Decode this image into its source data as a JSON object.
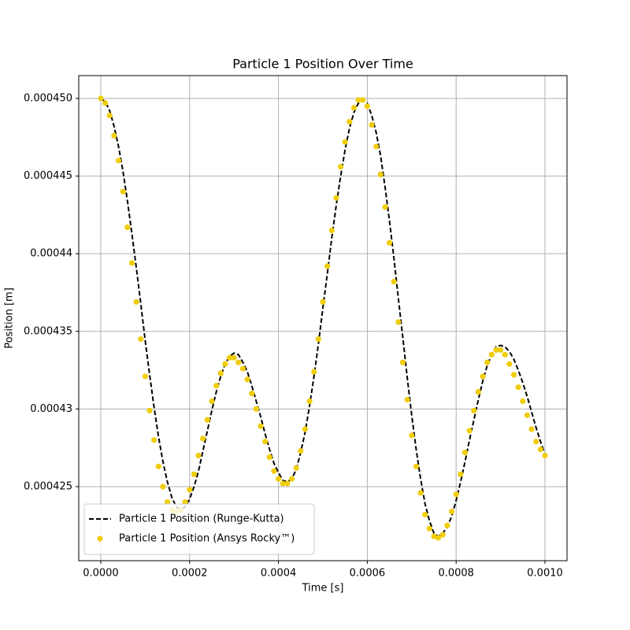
{
  "chart_data": {
    "type": "line",
    "title": "Particle 1 Position Over Time",
    "x_label": "Time [s]",
    "y_label": "Position [m]",
    "x": [
      0,
      1e-05,
      2e-05,
      3e-05,
      4e-05,
      5e-05,
      6e-05,
      7e-05,
      8e-05,
      9e-05,
      0.0001,
      0.00011,
      0.00012,
      0.00013,
      0.00014,
      0.00015,
      0.00016,
      0.00017,
      0.00018,
      0.00019,
      0.0002,
      0.00021,
      0.00022,
      0.00023,
      0.00024,
      0.00025,
      0.00026,
      0.00027,
      0.00028,
      0.00029,
      0.0003,
      0.00031,
      0.00032,
      0.00033,
      0.00034,
      0.00035,
      0.00036,
      0.00037,
      0.00038,
      0.00039,
      0.0004,
      0.00041,
      0.00042,
      0.00043,
      0.00044,
      0.00045,
      0.00046,
      0.00047,
      0.00048,
      0.00049,
      0.0005,
      0.00051,
      0.00052,
      0.00053,
      0.00054,
      0.00055,
      0.00056,
      0.00057,
      0.00058,
      0.00059,
      0.0006,
      0.00061,
      0.00062,
      0.00063,
      0.00064,
      0.00065,
      0.00066,
      0.00067,
      0.00068,
      0.00069,
      0.0007,
      0.00071,
      0.00072,
      0.00073,
      0.00074,
      0.00075,
      0.00076,
      0.00077,
      0.00078,
      0.00079,
      0.0008,
      0.00081,
      0.00082,
      0.00083,
      0.00084,
      0.00085,
      0.00086,
      0.00087,
      0.00088,
      0.00089,
      0.0009,
      0.00091,
      0.00092,
      0.00093,
      0.00094,
      0.00095,
      0.00096,
      0.00097,
      0.00098,
      0.00099,
      0.001
    ],
    "series": [
      {
        "name": "Particle 1 Position (Runge-Kutta)",
        "type": "line",
        "linestyle": "dashed",
        "color": "#000000",
        "values": [
          0.00045,
          0.0004498,
          0.0004492,
          0.0004482,
          0.0004469,
          0.0004453,
          0.0004434,
          0.0004413,
          0.0004391,
          0.0004368,
          0.0004344,
          0.0004322,
          0.0004301,
          0.0004282,
          0.0004266,
          0.0004253,
          0.0004243,
          0.0004237,
          0.0004235,
          0.0004237,
          0.0004242,
          0.000425,
          0.000426,
          0.0004273,
          0.0004286,
          0.0004299,
          0.0004311,
          0.0004321,
          0.0004329,
          0.0004334,
          0.0004336,
          0.0004335,
          0.000433,
          0.0004324,
          0.0004315,
          0.0004305,
          0.0004295,
          0.0004284,
          0.0004274,
          0.0004265,
          0.0004259,
          0.0004254,
          0.0004253,
          0.0004255,
          0.0004261,
          0.0004272,
          0.0004285,
          0.0004302,
          0.0004321,
          0.0004342,
          0.0004365,
          0.0004387,
          0.000441,
          0.0004431,
          0.000445,
          0.0004467,
          0.0004481,
          0.0004491,
          0.0004497,
          0.0004499,
          0.0004497,
          0.0004489,
          0.0004478,
          0.0004463,
          0.0004443,
          0.0004421,
          0.0004397,
          0.0004371,
          0.0004346,
          0.000432,
          0.0004296,
          0.0004274,
          0.0004255,
          0.0004239,
          0.0004228,
          0.000422,
          0.0004218,
          0.000422,
          0.0004224,
          0.0004231,
          0.0004241,
          0.0004253,
          0.0004266,
          0.000428,
          0.0004293,
          0.0004306,
          0.0004318,
          0.0004328,
          0.0004335,
          0.000434,
          0.0004341,
          0.000434,
          0.0004337,
          0.0004332,
          0.0004325,
          0.0004317,
          0.0004308,
          0.0004298,
          0.0004288,
          0.0004279,
          0.0004271
        ]
      },
      {
        "name": "Particle 1 Position (Ansys Rocky™)",
        "type": "scatter",
        "color": "#f0cd0a",
        "values": [
          0.00045,
          0.0004497,
          0.0004489,
          0.0004476,
          0.000446,
          0.000444,
          0.0004417,
          0.0004394,
          0.0004369,
          0.0004345,
          0.0004321,
          0.0004299,
          0.000428,
          0.0004263,
          0.000425,
          0.000424,
          0.0004235,
          0.0004234,
          0.0004235,
          0.000424,
          0.0004248,
          0.0004258,
          0.000427,
          0.0004281,
          0.0004293,
          0.0004305,
          0.0004315,
          0.0004323,
          0.0004329,
          0.0004333,
          0.0004333,
          0.000433,
          0.0004326,
          0.0004319,
          0.000431,
          0.00043,
          0.0004289,
          0.0004279,
          0.0004269,
          0.000426,
          0.0004255,
          0.0004252,
          0.0004252,
          0.0004255,
          0.0004262,
          0.0004273,
          0.0004287,
          0.0004305,
          0.0004324,
          0.0004345,
          0.0004369,
          0.0004392,
          0.0004415,
          0.0004436,
          0.0004456,
          0.0004472,
          0.0004485,
          0.0004494,
          0.0004499,
          0.0004499,
          0.0004495,
          0.0004483,
          0.0004469,
          0.0004451,
          0.000443,
          0.0004407,
          0.0004382,
          0.0004356,
          0.000433,
          0.0004306,
          0.0004283,
          0.0004263,
          0.0004246,
          0.0004232,
          0.0004223,
          0.0004218,
          0.0004217,
          0.0004219,
          0.0004225,
          0.0004234,
          0.0004245,
          0.0004258,
          0.0004272,
          0.0004286,
          0.0004299,
          0.0004311,
          0.0004321,
          0.000433,
          0.0004335,
          0.0004338,
          0.0004338,
          0.0004335,
          0.0004329,
          0.0004322,
          0.0004314,
          0.0004305,
          0.0004296,
          0.0004287,
          0.0004279,
          0.0004274,
          0.000427
        ]
      }
    ],
    "xlim": [
      -4.96e-05,
      0.0010496
    ],
    "xticks": [
      {
        "value": 0,
        "label": "0.0000"
      },
      {
        "value": 0.0002,
        "label": "0.0002"
      },
      {
        "value": 0.0004,
        "label": "0.0004"
      },
      {
        "value": 0.0006,
        "label": "0.0006"
      },
      {
        "value": 0.0008,
        "label": "0.0008"
      },
      {
        "value": 0.001,
        "label": "0.0010"
      }
    ],
    "ylim": [
      0.00042023,
      0.00045147
    ],
    "yticks": [
      0.000425,
      0.00043,
      0.000435,
      0.00044,
      0.000445,
      {
        "value": 0.00045,
        "label": "0.000450"
      }
    ],
    "grid": true,
    "legend": "lower left"
  }
}
